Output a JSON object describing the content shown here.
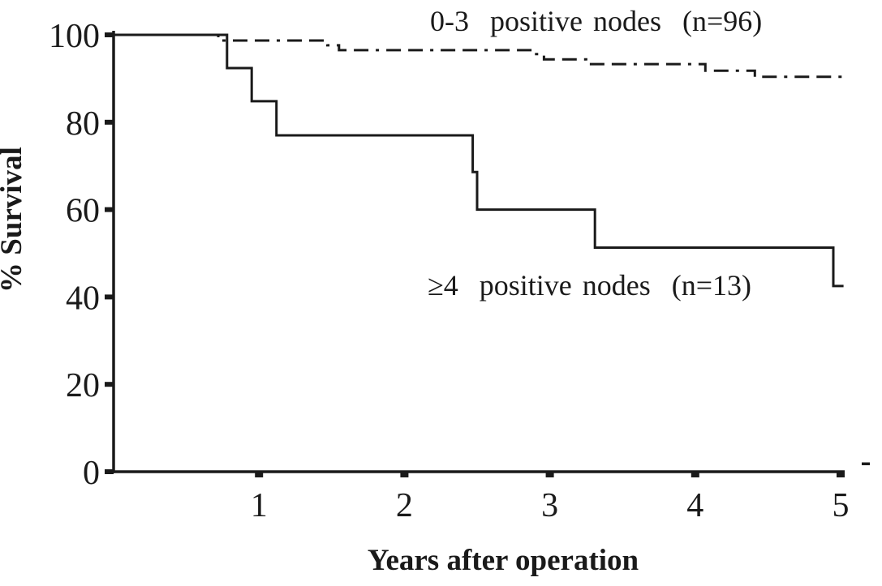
{
  "figure": {
    "background": "#ffffff",
    "ink_color": "#1a1a1a"
  },
  "chart_data": {
    "type": "line",
    "subtype": "kaplan_meier_step_survival",
    "title": "",
    "xlabel": "Years after operation",
    "ylabel": "% Survival",
    "xlim": [
      0,
      5.05
    ],
    "ylim": [
      0,
      100
    ],
    "grid": false,
    "legend_position": "inline-annotations",
    "x_ticks": [
      {
        "value": 1,
        "label": "1"
      },
      {
        "value": 2,
        "label": "2"
      },
      {
        "value": 3,
        "label": "3"
      },
      {
        "value": 4,
        "label": "4"
      },
      {
        "value": 5,
        "label": "5"
      }
    ],
    "y_ticks": [
      {
        "value": 0,
        "label": "0"
      },
      {
        "value": 20,
        "label": "20"
      },
      {
        "value": 40,
        "label": "40"
      },
      {
        "value": 60,
        "label": "60"
      },
      {
        "value": 80,
        "label": "80"
      },
      {
        "value": 100,
        "label": "100"
      }
    ],
    "series": [
      {
        "name": "0-3 positive nodes",
        "n": 96,
        "line_style": "dash-dot",
        "start": [
          0,
          100
        ],
        "steps": [
          [
            0.72,
            98.7
          ],
          [
            1.47,
            97.6
          ],
          [
            1.55,
            96.5
          ],
          [
            2.88,
            95.6
          ],
          [
            2.96,
            94.4
          ],
          [
            3.25,
            93.3
          ],
          [
            4.07,
            91.8
          ],
          [
            4.41,
            90.4
          ]
        ],
        "end_x": 5.02
      },
      {
        "name": "≥4 positive nodes",
        "n": 13,
        "line_style": "solid",
        "start": [
          0,
          100
        ],
        "steps": [
          [
            0.78,
            92.4
          ],
          [
            0.95,
            84.8
          ],
          [
            1.12,
            77.0
          ],
          [
            2.47,
            68.6
          ],
          [
            2.5,
            60.0
          ],
          [
            3.31,
            51.3
          ],
          [
            4.95,
            42.5
          ]
        ],
        "end_x": 5.02
      }
    ],
    "annotations": [
      {
        "text": "0-3  positive nodes  (n=96)",
        "series": "0-3 positive nodes"
      },
      {
        "text": "≥4  positive nodes  (n=13)",
        "series": "≥4 positive nodes"
      }
    ]
  }
}
